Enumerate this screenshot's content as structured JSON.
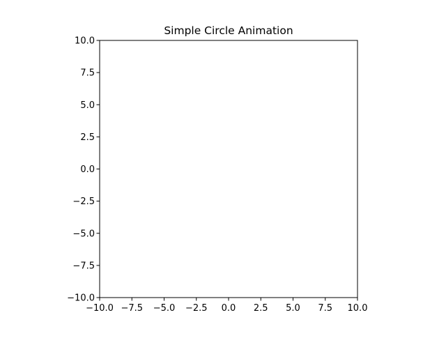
{
  "chart_data": {
    "type": "scatter",
    "title": "Simple Circle Animation",
    "xlabel": "",
    "ylabel": "",
    "xlim": [
      -10,
      10
    ],
    "ylim": [
      -10,
      10
    ],
    "x_ticks": [
      -10,
      -7.5,
      -5,
      -2.5,
      0,
      2.5,
      5,
      7.5,
      10
    ],
    "y_ticks": [
      -10,
      -7.5,
      -5,
      -2.5,
      0,
      2.5,
      5,
      7.5,
      10
    ],
    "x_tick_labels": [
      "−10.0",
      "−7.5",
      "−5.0",
      "−2.5",
      "0.0",
      "2.5",
      "5.0",
      "7.5",
      "10.0"
    ],
    "y_tick_labels": [
      "−10.0",
      "−7.5",
      "−5.0",
      "−2.5",
      "0.0",
      "2.5",
      "5.0",
      "7.5",
      "10.0"
    ],
    "series": [],
    "grid": false,
    "colors": {
      "axes": "#000000",
      "background": "#ffffff"
    }
  }
}
